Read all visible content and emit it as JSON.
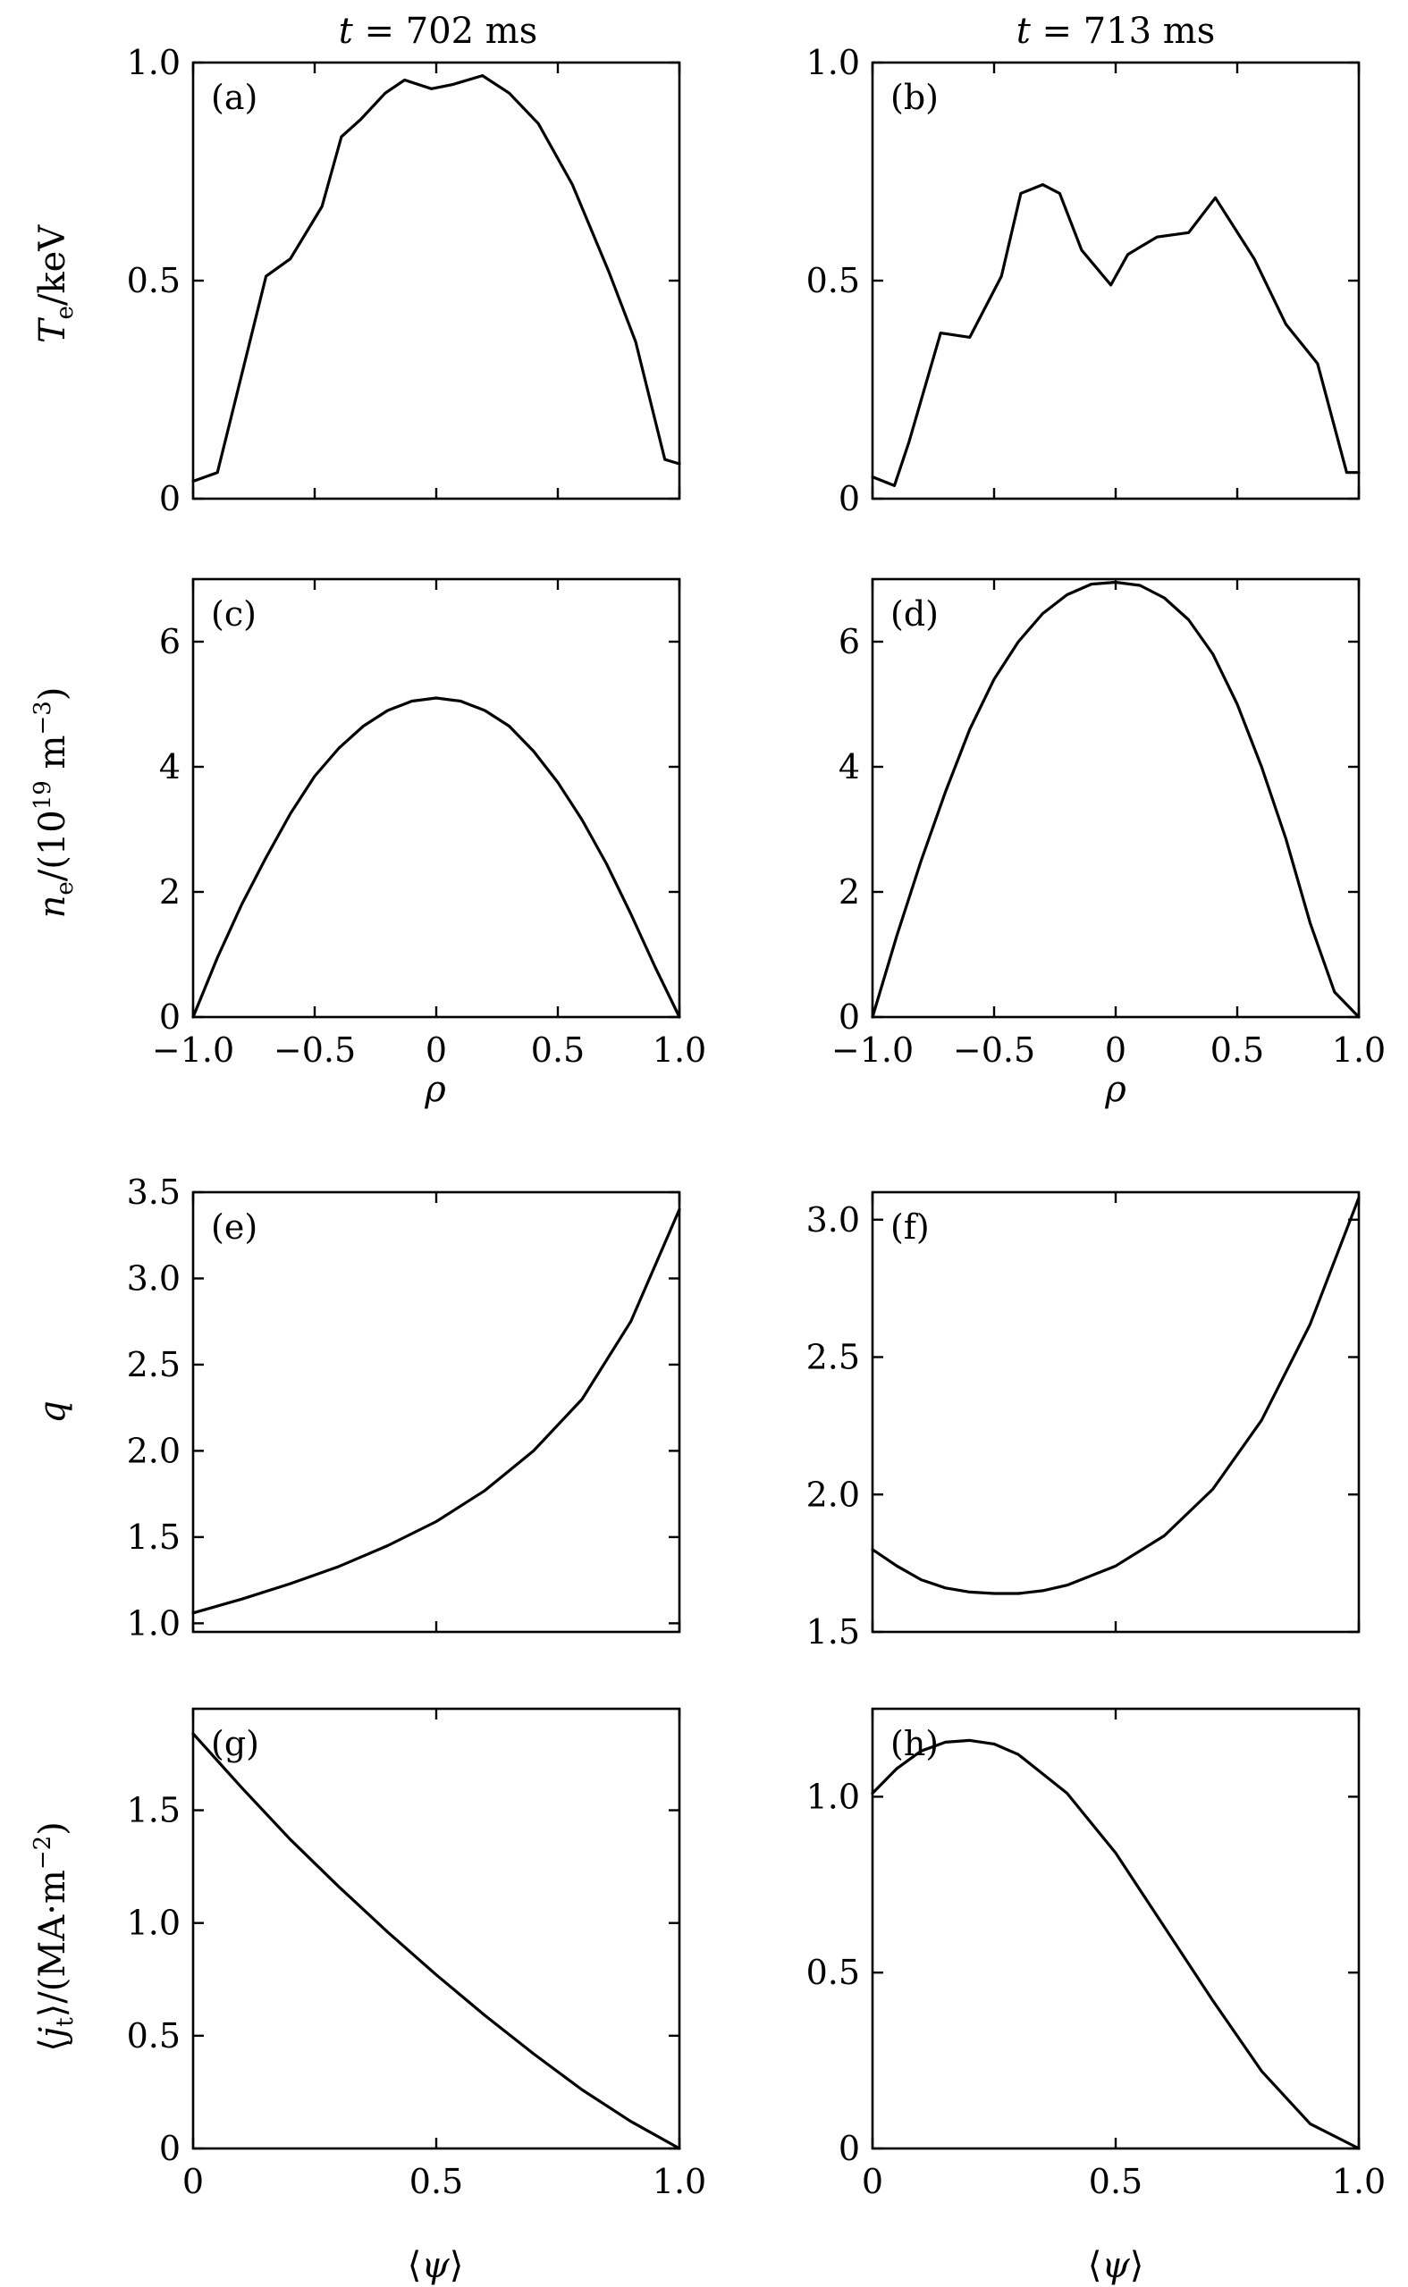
{
  "column_titles": [
    "t = 702 ms",
    "t = 713 ms"
  ],
  "chart_data": [
    {
      "id": "a",
      "panel_label": "(a)",
      "type": "line",
      "ylabel": "Te/keV",
      "xlabel": "",
      "xlim": [
        -1.0,
        1.0
      ],
      "ylim": [
        0,
        1.0
      ],
      "xticks": [
        -1.0,
        -0.5,
        0,
        0.5,
        1.0
      ],
      "xtick_labels": [],
      "yticks": [
        0,
        0.5,
        1.0
      ],
      "ytick_labels": [
        "0",
        "0.5",
        "1.0"
      ],
      "x": [
        -1.0,
        -0.9,
        -0.82,
        -0.7,
        -0.6,
        -0.47,
        -0.39,
        -0.31,
        -0.21,
        -0.13,
        -0.02,
        0.07,
        0.19,
        0.3,
        0.42,
        0.56,
        0.71,
        0.82,
        0.94,
        1.0
      ],
      "y": [
        0.04,
        0.06,
        0.24,
        0.51,
        0.55,
        0.67,
        0.83,
        0.87,
        0.93,
        0.96,
        0.94,
        0.95,
        0.97,
        0.93,
        0.86,
        0.72,
        0.52,
        0.36,
        0.09,
        0.08
      ]
    },
    {
      "id": "b",
      "panel_label": "(b)",
      "type": "line",
      "ylabel": "",
      "xlabel": "",
      "xlim": [
        -1.0,
        1.0
      ],
      "ylim": [
        0,
        1.0
      ],
      "xticks": [
        -1.0,
        -0.5,
        0,
        0.5,
        1.0
      ],
      "xtick_labels": [],
      "yticks": [
        0,
        0.5,
        1.0
      ],
      "ytick_labels": [
        "0",
        "0.5",
        "1.0"
      ],
      "x": [
        -1.0,
        -0.91,
        -0.85,
        -0.72,
        -0.6,
        -0.47,
        -0.39,
        -0.3,
        -0.23,
        -0.14,
        -0.02,
        0.05,
        0.17,
        0.3,
        0.41,
        0.57,
        0.7,
        0.83,
        0.95,
        1.0
      ],
      "y": [
        0.05,
        0.03,
        0.13,
        0.38,
        0.37,
        0.51,
        0.7,
        0.72,
        0.7,
        0.57,
        0.49,
        0.56,
        0.6,
        0.61,
        0.69,
        0.55,
        0.4,
        0.31,
        0.06,
        0.06
      ]
    },
    {
      "id": "c",
      "panel_label": "(c)",
      "type": "line",
      "ylabel": "ne/(10^19 m^-3)",
      "xlabel": "ρ",
      "xlim": [
        -1.0,
        1.0
      ],
      "ylim": [
        0,
        7
      ],
      "xticks": [
        -1.0,
        -0.5,
        0,
        0.5,
        1.0
      ],
      "xtick_labels": [
        "−1.0",
        "−0.5",
        "0",
        "0.5",
        "1.0"
      ],
      "yticks": [
        0,
        2,
        4,
        6
      ],
      "ytick_labels": [
        "0",
        "2",
        "4",
        "6"
      ],
      "x": [
        -1.0,
        -0.9,
        -0.8,
        -0.7,
        -0.6,
        -0.5,
        -0.4,
        -0.3,
        -0.2,
        -0.1,
        0.0,
        0.1,
        0.2,
        0.3,
        0.4,
        0.5,
        0.6,
        0.7,
        0.8,
        0.9,
        1.0
      ],
      "y": [
        0.0,
        0.95,
        1.8,
        2.55,
        3.25,
        3.85,
        4.3,
        4.65,
        4.9,
        5.05,
        5.1,
        5.05,
        4.9,
        4.65,
        4.25,
        3.75,
        3.15,
        2.45,
        1.65,
        0.8,
        0.0
      ]
    },
    {
      "id": "d",
      "panel_label": "(d)",
      "type": "line",
      "ylabel": "",
      "xlabel": "ρ",
      "xlim": [
        -1.0,
        1.0
      ],
      "ylim": [
        0,
        7
      ],
      "xticks": [
        -1.0,
        -0.5,
        0,
        0.5,
        1.0
      ],
      "xtick_labels": [
        "−1.0",
        "−0.5",
        "0",
        "0.5",
        "1.0"
      ],
      "yticks": [
        0,
        2,
        4,
        6
      ],
      "ytick_labels": [
        "0",
        "2",
        "4",
        "6"
      ],
      "x": [
        -1.0,
        -0.9,
        -0.8,
        -0.7,
        -0.6,
        -0.5,
        -0.4,
        -0.3,
        -0.2,
        -0.1,
        0.0,
        0.1,
        0.2,
        0.3,
        0.4,
        0.5,
        0.6,
        0.7,
        0.8,
        0.9,
        1.0
      ],
      "y": [
        0.0,
        1.3,
        2.5,
        3.6,
        4.6,
        5.4,
        6.0,
        6.45,
        6.75,
        6.92,
        6.95,
        6.9,
        6.7,
        6.35,
        5.8,
        5.0,
        4.0,
        2.85,
        1.5,
        0.4,
        0.0
      ]
    },
    {
      "id": "e",
      "panel_label": "(e)",
      "type": "line",
      "ylabel": "q",
      "xlabel": "",
      "xlim": [
        0,
        1.0
      ],
      "ylim": [
        0.95,
        3.5
      ],
      "xticks": [
        0,
        0.5,
        1.0
      ],
      "xtick_labels": [],
      "yticks": [
        1.0,
        1.5,
        2.0,
        2.5,
        3.0,
        3.5
      ],
      "ytick_labels": [
        "1.0",
        "1.5",
        "2.0",
        "2.5",
        "3.0",
        "3.5"
      ],
      "x": [
        0.0,
        0.1,
        0.2,
        0.3,
        0.4,
        0.5,
        0.6,
        0.7,
        0.8,
        0.9,
        1.0
      ],
      "y": [
        1.06,
        1.14,
        1.23,
        1.33,
        1.45,
        1.59,
        1.77,
        2.0,
        2.3,
        2.75,
        3.4
      ]
    },
    {
      "id": "f",
      "panel_label": "(f)",
      "type": "line",
      "ylabel": "",
      "xlabel": "",
      "xlim": [
        0,
        1.0
      ],
      "ylim": [
        1.5,
        3.1
      ],
      "xticks": [
        0,
        0.5,
        1.0
      ],
      "xtick_labels": [],
      "yticks": [
        1.5,
        2.0,
        2.5,
        3.0
      ],
      "ytick_labels": [
        "1.5",
        "2.0",
        "2.5",
        "3.0"
      ],
      "x": [
        0.0,
        0.05,
        0.1,
        0.15,
        0.2,
        0.25,
        0.3,
        0.35,
        0.4,
        0.5,
        0.6,
        0.7,
        0.8,
        0.9,
        1.0
      ],
      "y": [
        1.8,
        1.74,
        1.69,
        1.66,
        1.645,
        1.64,
        1.64,
        1.65,
        1.67,
        1.74,
        1.85,
        2.02,
        2.27,
        2.62,
        3.08
      ]
    },
    {
      "id": "g",
      "panel_label": "(g)",
      "type": "line",
      "ylabel": "⟨jt⟩/(MA·m^-2)",
      "xlabel": "⟨ψ⟩",
      "xlim": [
        0,
        1.0
      ],
      "ylim": [
        0,
        1.95
      ],
      "xticks": [
        0,
        0.5,
        1.0
      ],
      "xtick_labels": [
        "0",
        "0.5",
        "1.0"
      ],
      "yticks": [
        0,
        0.5,
        1.0,
        1.5
      ],
      "ytick_labels": [
        "0",
        "0.5",
        "1.0",
        "1.5"
      ],
      "x": [
        0.0,
        0.1,
        0.2,
        0.3,
        0.4,
        0.5,
        0.6,
        0.7,
        0.8,
        0.9,
        1.0
      ],
      "y": [
        1.84,
        1.6,
        1.37,
        1.16,
        0.96,
        0.77,
        0.59,
        0.42,
        0.26,
        0.12,
        0.0
      ]
    },
    {
      "id": "h",
      "panel_label": "(h)",
      "type": "line",
      "ylabel": "",
      "xlabel": "⟨ψ⟩",
      "xlim": [
        0,
        1.0
      ],
      "ylim": [
        0,
        1.25
      ],
      "xticks": [
        0,
        0.5,
        1.0
      ],
      "xtick_labels": [
        "0",
        "0.5",
        "1.0"
      ],
      "yticks": [
        0,
        0.5,
        1.0
      ],
      "ytick_labels": [
        "0",
        "0.5",
        "1.0"
      ],
      "x": [
        0.0,
        0.05,
        0.1,
        0.15,
        0.2,
        0.25,
        0.3,
        0.4,
        0.5,
        0.6,
        0.7,
        0.8,
        0.9,
        1.0
      ],
      "y": [
        1.01,
        1.08,
        1.13,
        1.155,
        1.16,
        1.15,
        1.12,
        1.01,
        0.84,
        0.63,
        0.42,
        0.22,
        0.07,
        0.0
      ]
    }
  ]
}
